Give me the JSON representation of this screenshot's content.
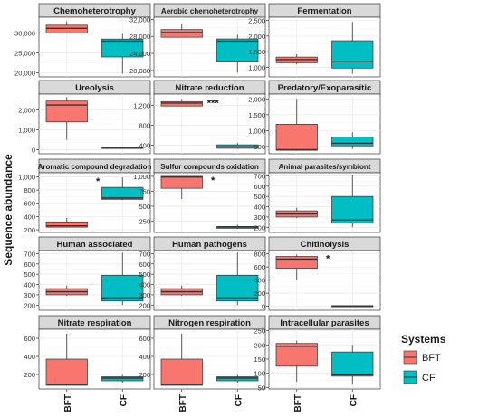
{
  "ylabel": "Sequence abundance",
  "legend": {
    "title": "Systems",
    "entries": [
      {
        "label": "BFT",
        "color": "#F8766D"
      },
      {
        "label": "CF",
        "color": "#00BFC4"
      }
    ],
    "placement": "right"
  },
  "colors": {
    "BFT": "#F8766D",
    "CF": "#00BFC4",
    "strip": "#d9d9d9",
    "grid": "#ebebeb"
  },
  "chart_data": {
    "type": "boxplot",
    "layout": "facet-grid-5x3",
    "categories": [
      "BFT",
      "CF"
    ],
    "grid": true,
    "panels": [
      {
        "title": "Chemoheterotrophy",
        "ylim": [
          19000,
          34000
        ],
        "yticks": [
          20000,
          25000,
          30000
        ],
        "yticklabels": [
          "20,000",
          "25,000",
          "30,000"
        ],
        "boxes": [
          {
            "group": "BFT",
            "whisker_low": 30000,
            "q1": 30000,
            "median": 31200,
            "q3": 32000,
            "whisker_high": 33000
          },
          {
            "group": "CF",
            "whisker_low": 19800,
            "q1": 24000,
            "median": 28000,
            "q3": 28500,
            "whisker_high": 29800
          }
        ],
        "significance": ""
      },
      {
        "title": "Aerobic chemoheterotrophy",
        "ylim": [
          18500,
          32500
        ],
        "yticks": [
          20000,
          24000,
          28000,
          32000
        ],
        "yticklabels": [
          "20,000",
          "24,000",
          "28,000",
          "32,000"
        ],
        "boxes": [
          {
            "group": "BFT",
            "whisker_low": 27800,
            "q1": 27800,
            "median": 28900,
            "q3": 29600,
            "whisker_high": 30800
          },
          {
            "group": "CF",
            "whisker_low": 19500,
            "q1": 22200,
            "median": 26900,
            "q3": 27400,
            "whisker_high": 28400
          }
        ],
        "significance": ""
      },
      {
        "title": "Fermentation",
        "ylim": [
          700,
          2600
        ],
        "yticks": [
          1000,
          1500,
          2000,
          2500
        ],
        "yticklabels": [
          "1,000",
          "1,500",
          "2,000",
          "2,500"
        ],
        "boxes": [
          {
            "group": "BFT",
            "whisker_low": 1100,
            "q1": 1150,
            "median": 1250,
            "q3": 1330,
            "whisker_high": 1420
          },
          {
            "group": "CF",
            "whisker_low": 800,
            "q1": 980,
            "median": 1180,
            "q3": 1850,
            "whisker_high": 2450
          }
        ],
        "significance": ""
      },
      {
        "title": "Ureolysis",
        "ylim": [
          -200,
          2800
        ],
        "yticks": [
          0,
          1000,
          2000
        ],
        "yticklabels": [
          "0",
          "1,000",
          "2,000"
        ],
        "boxes": [
          {
            "group": "BFT",
            "whisker_low": 500,
            "q1": 1400,
            "median": 2250,
            "q3": 2450,
            "whisker_high": 2650
          },
          {
            "group": "CF",
            "whisker_low": 80,
            "q1": 80,
            "median": 100,
            "q3": 120,
            "whisker_high": 130
          }
        ],
        "significance": ""
      },
      {
        "title": "Nitrate reduction",
        "ylim": [
          230,
          1430
        ],
        "yticks": [
          400,
          800,
          1200
        ],
        "yticklabels": [
          "400",
          "800",
          "1,200"
        ],
        "boxes": [
          {
            "group": "BFT",
            "whisker_low": 1190,
            "q1": 1190,
            "median": 1250,
            "q3": 1280,
            "whisker_high": 1330
          },
          {
            "group": "CF",
            "whisker_low": 330,
            "q1": 340,
            "median": 370,
            "q3": 410,
            "whisker_high": 450
          }
        ],
        "significance": "***"
      },
      {
        "title": "Predatory/Exoparasitic",
        "ylim": [
          270,
          2150
        ],
        "yticks": [
          500,
          1000,
          1500,
          2000
        ],
        "yticklabels": [
          "500",
          "1,000",
          "1,500",
          "2,000"
        ],
        "boxes": [
          {
            "group": "BFT",
            "whisker_low": 380,
            "q1": 380,
            "median": 400,
            "q3": 1200,
            "whisker_high": 2000
          },
          {
            "group": "CF",
            "whisker_low": 420,
            "q1": 520,
            "median": 600,
            "q3": 800,
            "whisker_high": 950
          }
        ],
        "significance": ""
      },
      {
        "title": "Aromatic compound degradation",
        "ylim": [
          160,
          1060
        ],
        "yticks": [
          200,
          400,
          600,
          800,
          1000
        ],
        "yticklabels": [
          "200",
          "400",
          "600",
          "800",
          "1,000"
        ],
        "boxes": [
          {
            "group": "BFT",
            "whisker_low": 240,
            "q1": 240,
            "median": 260,
            "q3": 320,
            "whisker_high": 380
          },
          {
            "group": "CF",
            "whisker_low": 650,
            "q1": 660,
            "median": 680,
            "q3": 840,
            "whisker_high": 990
          }
        ],
        "significance": "*"
      },
      {
        "title": "Sulfur compounds oxidation",
        "ylim": [
          60,
          1060
        ],
        "yticks": [
          250,
          500,
          750,
          1000
        ],
        "yticklabels": [
          "250",
          "500",
          "750",
          "1,000"
        ],
        "boxes": [
          {
            "group": "BFT",
            "whisker_low": 620,
            "q1": 800,
            "median": 990,
            "q3": 1000,
            "whisker_high": 1000
          },
          {
            "group": "CF",
            "whisker_low": 120,
            "q1": 130,
            "median": 150,
            "q3": 160,
            "whisker_high": 190
          }
        ],
        "significance": "*"
      },
      {
        "title": "Animal parasites/symbiont",
        "ylim": [
          150,
          730
        ],
        "yticks": [
          200,
          300,
          400,
          500,
          600,
          700
        ],
        "yticklabels": [
          "200",
          "300",
          "400",
          "500",
          "600",
          "700"
        ],
        "boxes": [
          {
            "group": "BFT",
            "whisker_low": 290,
            "q1": 300,
            "median": 330,
            "q3": 360,
            "whisker_high": 390
          },
          {
            "group": "CF",
            "whisker_low": 200,
            "q1": 240,
            "median": 270,
            "q3": 500,
            "whisker_high": 710
          }
        ],
        "significance": ""
      },
      {
        "title": "Human associated",
        "ylim": [
          150,
          730
        ],
        "yticks": [
          200,
          300,
          400,
          500,
          600,
          700
        ],
        "yticklabels": [
          "200",
          "300",
          "400",
          "500",
          "600",
          "700"
        ],
        "boxes": [
          {
            "group": "BFT",
            "whisker_low": 290,
            "q1": 300,
            "median": 330,
            "q3": 360,
            "whisker_high": 390
          },
          {
            "group": "CF",
            "whisker_low": 200,
            "q1": 240,
            "median": 270,
            "q3": 490,
            "whisker_high": 710
          }
        ],
        "significance": ""
      },
      {
        "title": "Human pathogens",
        "ylim": [
          150,
          730
        ],
        "yticks": [
          200,
          300,
          400,
          500,
          600,
          700
        ],
        "yticklabels": [
          "200",
          "300",
          "400",
          "500",
          "600",
          "700"
        ],
        "boxes": [
          {
            "group": "BFT",
            "whisker_low": 290,
            "q1": 300,
            "median": 330,
            "q3": 360,
            "whisker_high": 390
          },
          {
            "group": "CF",
            "whisker_low": 200,
            "q1": 240,
            "median": 270,
            "q3": 490,
            "whisker_high": 710
          }
        ],
        "significance": ""
      },
      {
        "title": "Chitinolysis",
        "ylim": [
          -60,
          850
        ],
        "yticks": [
          0,
          200,
          400,
          600,
          800
        ],
        "yticklabels": [
          "0",
          "200",
          "400",
          "600",
          "800"
        ],
        "boxes": [
          {
            "group": "BFT",
            "whisker_low": 400,
            "q1": 580,
            "median": 720,
            "q3": 760,
            "whisker_high": 790
          },
          {
            "group": "CF",
            "whisker_low": 0,
            "q1": 0,
            "median": 5,
            "q3": 10,
            "whisker_high": 12
          }
        ],
        "significance": "*"
      },
      {
        "title": "Nitrate respiration",
        "ylim": [
          40,
          700
        ],
        "yticks": [
          200,
          400,
          600
        ],
        "yticklabels": [
          "200",
          "400",
          "600"
        ],
        "boxes": [
          {
            "group": "BFT",
            "whisker_low": 80,
            "q1": 80,
            "median": 90,
            "q3": 370,
            "whisker_high": 650
          },
          {
            "group": "CF",
            "whisker_low": 110,
            "q1": 130,
            "median": 160,
            "q3": 175,
            "whisker_high": 195
          }
        ],
        "significance": ""
      },
      {
        "title": "Nitrogen respiration",
        "ylim": [
          40,
          700
        ],
        "yticks": [
          200,
          400,
          600
        ],
        "yticklabels": [
          "200",
          "400",
          "600"
        ],
        "boxes": [
          {
            "group": "BFT",
            "whisker_low": 80,
            "q1": 80,
            "median": 90,
            "q3": 370,
            "whisker_high": 650
          },
          {
            "group": "CF",
            "whisker_low": 110,
            "q1": 130,
            "median": 160,
            "q3": 175,
            "whisker_high": 195
          }
        ],
        "significance": ""
      },
      {
        "title": "Intracellular parasites",
        "ylim": [
          45,
          255
        ],
        "yticks": [
          50,
          100,
          150,
          200,
          250
        ],
        "yticklabels": [
          "50",
          "100",
          "150",
          "200",
          "250"
        ],
        "boxes": [
          {
            "group": "BFT",
            "whisker_low": 70,
            "q1": 125,
            "median": 195,
            "q3": 205,
            "whisker_high": 215
          },
          {
            "group": "CF",
            "whisker_low": 60,
            "q1": 90,
            "median": 95,
            "q3": 175,
            "whisker_high": 200
          }
        ],
        "significance": ""
      }
    ]
  }
}
